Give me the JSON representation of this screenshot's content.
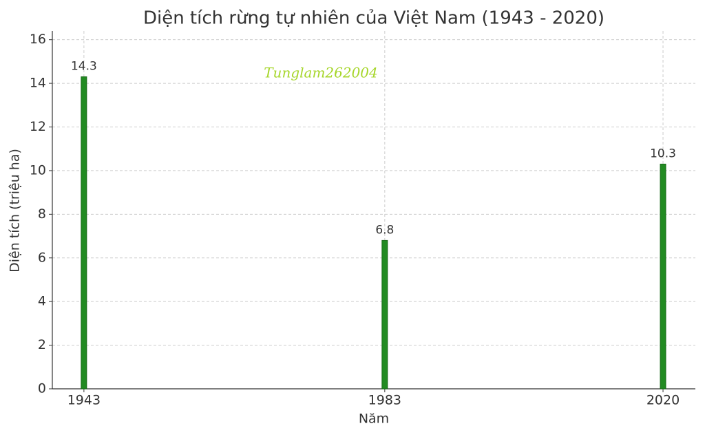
{
  "chart_data": {
    "type": "bar",
    "title": "Diện tích rừng tự nhiên của Việt Nam (1943 - 2020)",
    "x_label": "Năm",
    "y_label": "Diện tích (triệu ha)",
    "annotation": "Tunglam262004",
    "x": [
      1943,
      1983,
      2020
    ],
    "values": [
      14.3,
      6.8,
      10.3
    ],
    "color": "#228b22",
    "xlim": [
      1938.8,
      2024.3
    ],
    "xticks": [
      1943,
      1983,
      2020
    ],
    "ylim": [
      0,
      16.4
    ],
    "yticks": [
      0,
      2,
      4,
      6,
      8,
      10,
      12,
      14,
      16
    ],
    "grid": true
  }
}
